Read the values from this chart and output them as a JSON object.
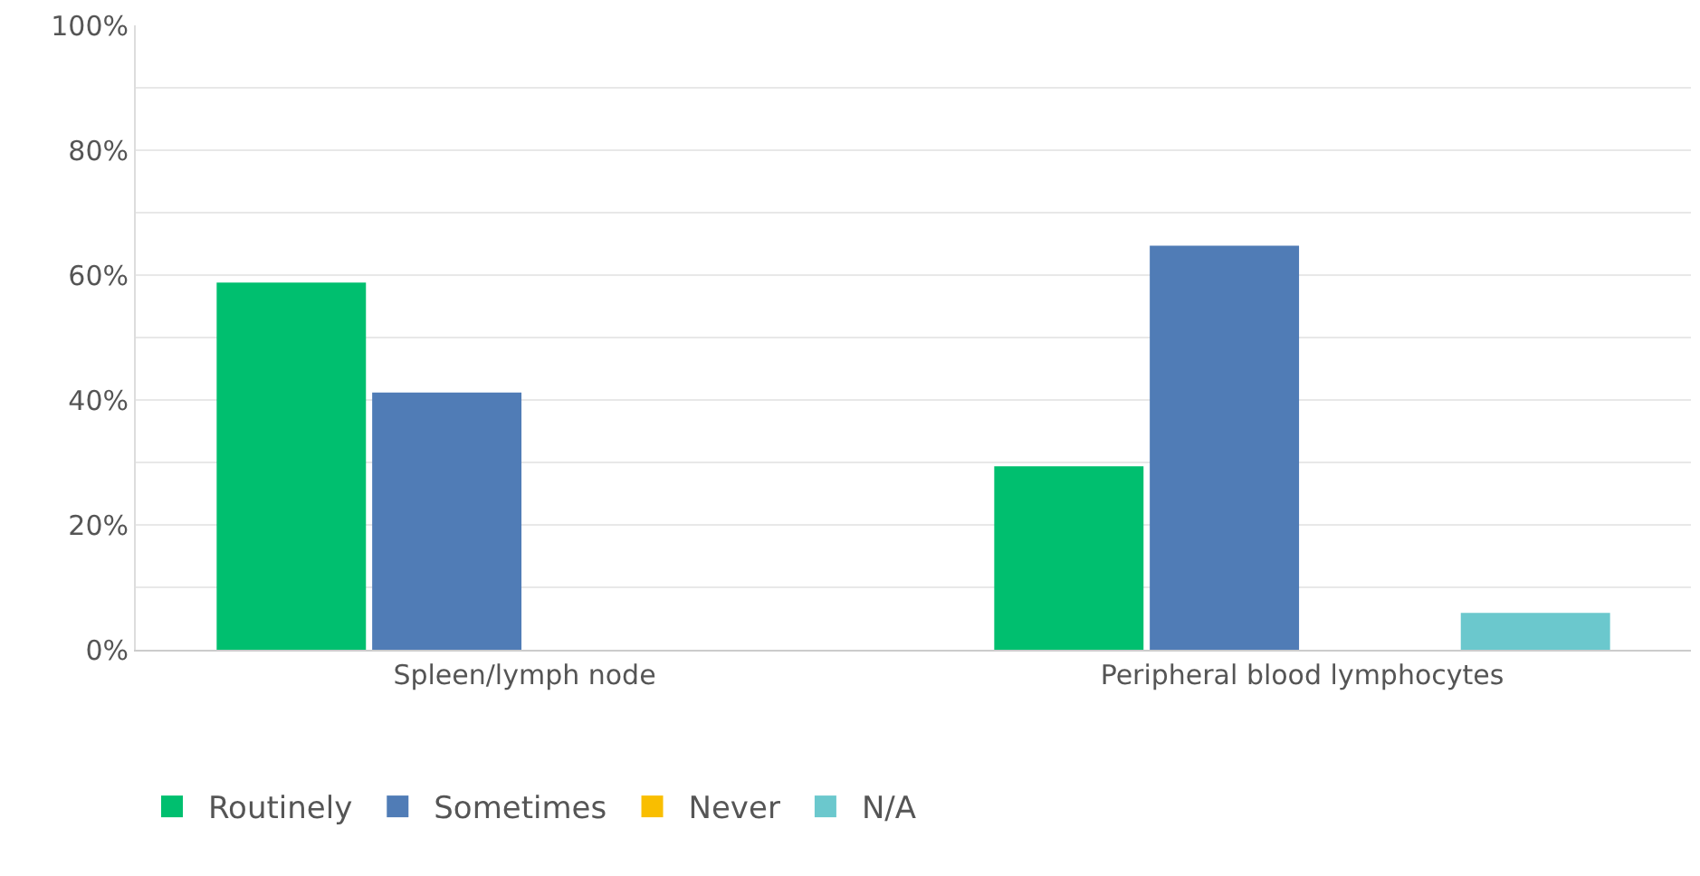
{
  "chart_data": {
    "type": "bar",
    "categories": [
      "Spleen/lymph node",
      "Peripheral blood lymphocytes"
    ],
    "series": [
      {
        "name": "Routinely",
        "color": "#00bf6f",
        "values": [
          58.8,
          29.4
        ]
      },
      {
        "name": "Sometimes",
        "color": "#507cb6",
        "values": [
          41.2,
          64.7
        ]
      },
      {
        "name": "Never",
        "color": "#f9be00",
        "values": [
          0,
          0
        ]
      },
      {
        "name": "N/A",
        "color": "#6bc8cd",
        "values": [
          0,
          5.9
        ]
      }
    ],
    "ylim": [
      0,
      100
    ],
    "yticks": [
      {
        "value": 0,
        "label": "0%"
      },
      {
        "value": 10,
        "label": null
      },
      {
        "value": 20,
        "label": "20%"
      },
      {
        "value": 30,
        "label": null
      },
      {
        "value": 40,
        "label": "40%"
      },
      {
        "value": 50,
        "label": null
      },
      {
        "value": 60,
        "label": "60%"
      },
      {
        "value": 70,
        "label": null
      },
      {
        "value": 80,
        "label": "80%"
      },
      {
        "value": 90,
        "label": null
      },
      {
        "value": 100,
        "label": "100%"
      }
    ],
    "grid": "y",
    "legend": "bottom left"
  }
}
